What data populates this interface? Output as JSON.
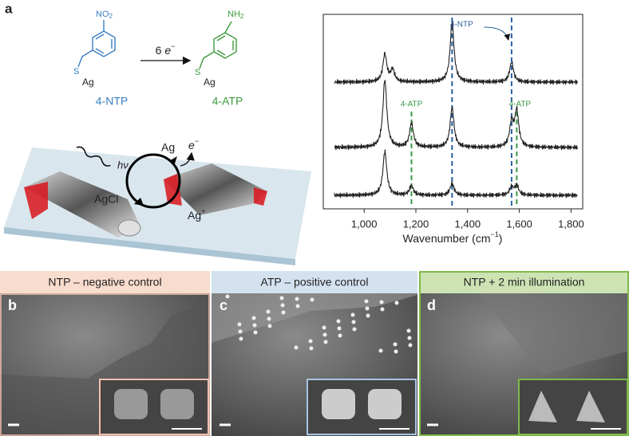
{
  "panel_a": {
    "label": "a",
    "reactant": {
      "group": "NO",
      "group_sub": "2",
      "thiol": "S",
      "metal": "Ag",
      "name": "4-NTP"
    },
    "reaction": {
      "coef": "6 ",
      "electron": "e",
      "electron_sup": "−"
    },
    "product": {
      "group": "NH",
      "group_sub": "2",
      "thiol": "S",
      "metal": "Ag",
      "name": "4-ATP"
    },
    "scheme": {
      "light": "hν",
      "metal": "Ag",
      "electron": "e",
      "electron_sup": "−",
      "salt": "AgCl",
      "ion": "Ag",
      "ion_sup": "+"
    },
    "spectrum": {
      "x_label": "Wavenumber (cm",
      "x_label_sup": "−1",
      "x_label_end": ")",
      "xlim": [
        842,
        1845
      ],
      "xticks": [
        {
          "value": 1000,
          "label": "1,000"
        },
        {
          "value": 1200,
          "label": "1,200"
        },
        {
          "value": 1400,
          "label": "1,400"
        },
        {
          "value": 1600,
          "label": "1,600"
        },
        {
          "value": 1800,
          "label": "1,800"
        }
      ],
      "markers": [
        {
          "x": 1183,
          "color": "#3a9a4a"
        },
        {
          "x": 1340,
          "color": "#2c5f9e"
        },
        {
          "x": 1570,
          "color": "#2c5f9e"
        },
        {
          "x": 1590,
          "color": "#3a9a4a"
        }
      ],
      "annotations": [
        {
          "text": "4-NTP",
          "color": "#2c5f9e"
        },
        {
          "text": "4-ATP",
          "color": "#3a9a4a"
        },
        {
          "text": "4-ATP",
          "color": "#3a9a4a"
        }
      ],
      "traces": [
        {
          "peak_x": [
            1080,
            1110,
            1340,
            1570
          ],
          "peak_intensity": [
            35,
            15,
            75,
            25
          ]
        },
        {
          "peak_x": [
            1080,
            1183,
            1340,
            1570,
            1590
          ],
          "peak_intensity": [
            85,
            30,
            50,
            30,
            45
          ]
        },
        {
          "peak_x": [
            1080,
            1183,
            1340,
            1570,
            1590
          ],
          "peak_intensity": [
            55,
            12,
            15,
            10,
            12
          ]
        }
      ]
    }
  },
  "panels": [
    {
      "label": "b",
      "header": "NTP – negative control",
      "color": "#f8dccd",
      "border": "#f0c0b0"
    },
    {
      "label": "c",
      "header": "ATP – positive control",
      "color": "#d4e2f0",
      "border": "#a9c4e2"
    },
    {
      "label": "d",
      "header": "NTP + 2 min illumination",
      "color": "#cde3b4",
      "border": "#7fba4a"
    }
  ]
}
